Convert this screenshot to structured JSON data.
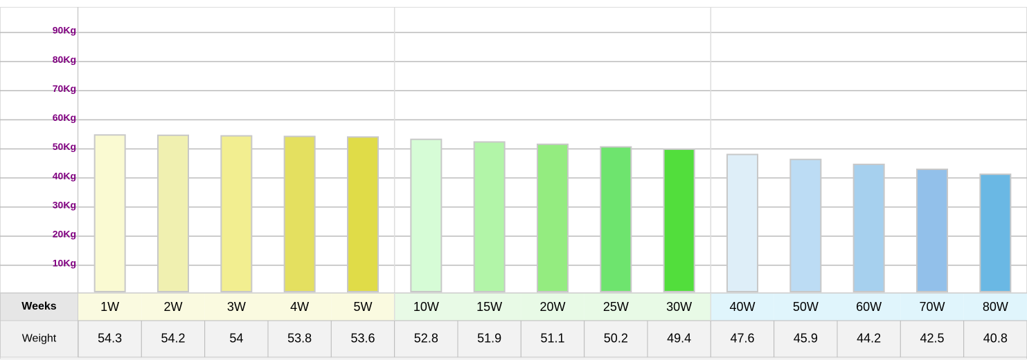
{
  "chart_data": {
    "type": "bar",
    "categories": [
      "1W",
      "2W",
      "3W",
      "4W",
      "5W",
      "10W",
      "15W",
      "20W",
      "25W",
      "30W",
      "40W",
      "50W",
      "60W",
      "70W",
      "80W"
    ],
    "values": [
      54.3,
      54.2,
      54,
      53.8,
      53.6,
      52.8,
      51.9,
      51.1,
      50.2,
      49.4,
      47.6,
      45.9,
      44.2,
      42.5,
      40.8
    ],
    "colors": [
      "#fafad2",
      "#f0f0b0",
      "#f2ee90",
      "#e4e060",
      "#e0dc48",
      "#d6fcd6",
      "#b2f5a8",
      "#94ec80",
      "#6ee46e",
      "#52de3c",
      "#deeef8",
      "#bcdcf4",
      "#a6d0ee",
      "#92c0ea",
      "#6ab8e4"
    ],
    "header_colors": [
      "#fafae0",
      "#fafae0",
      "#fafae0",
      "#fafae0",
      "#fafae0",
      "#e8fae6",
      "#e8fae6",
      "#e8fae6",
      "#e8fae6",
      "#e8fae6",
      "#e0f5fc",
      "#e0f5fc",
      "#e0f5fc",
      "#e0f5fc",
      "#e0f5fc"
    ],
    "table_row_labels": [
      "Weeks",
      "Weight"
    ],
    "ylim": [
      0,
      90
    ],
    "yticks": [
      {
        "value": 10,
        "label": "10Kg"
      },
      {
        "value": 20,
        "label": "20Kg"
      },
      {
        "value": 30,
        "label": "30Kg"
      },
      {
        "value": 40,
        "label": "40Kg"
      },
      {
        "value": 50,
        "label": "50Kg"
      },
      {
        "value": 60,
        "label": "60Kg"
      },
      {
        "value": 70,
        "label": "70Kg"
      },
      {
        "value": 80,
        "label": "80Kg"
      },
      {
        "value": 90,
        "label": "90Kg"
      }
    ],
    "grid": true
  }
}
